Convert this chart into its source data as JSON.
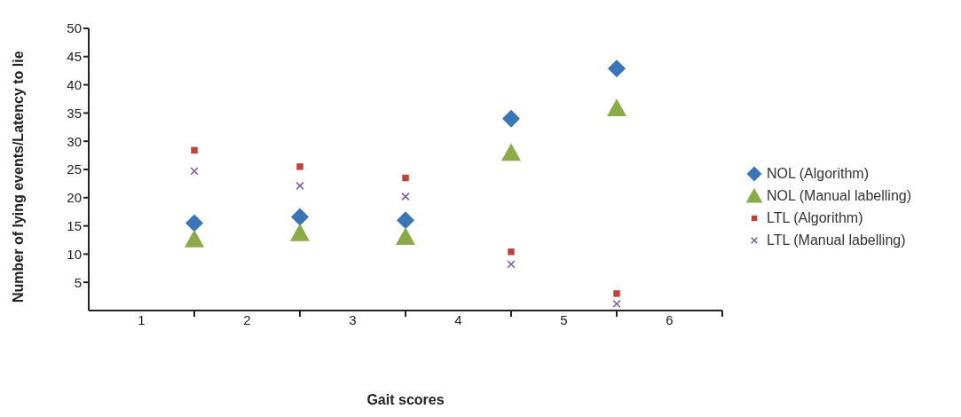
{
  "chart_data": {
    "type": "scatter",
    "xlabel": "Gait scores",
    "ylabel": "Number of lying events/Latency to lie",
    "x": [
      1.5,
      2.5,
      3.5,
      4.5,
      5.5
    ],
    "series": [
      {
        "name": "NOL (Algorithm)",
        "color": "#3a75b8",
        "marker": "diamond",
        "values": [
          15.5,
          16.6,
          16.0,
          34.0,
          42.9
        ]
      },
      {
        "name": "NOL (Manual labelling)",
        "color": "#8aab48",
        "marker": "triangle",
        "values": [
          12.6,
          13.7,
          13.0,
          27.9,
          35.8
        ]
      },
      {
        "name": "LTL (Algorithm)",
        "color": "#c0413c",
        "marker": "square",
        "values": [
          28.4,
          25.5,
          23.5,
          10.4,
          3.0
        ]
      },
      {
        "name": "LTL (Manual labelling)",
        "color": "#7d5ba6",
        "marker": "cross",
        "values": [
          24.7,
          22.1,
          20.2,
          8.2,
          1.2
        ]
      }
    ],
    "xlim": [
      0.5,
      6.5
    ],
    "xticks": [
      1,
      2,
      3,
      4,
      5,
      6,
      {
        "value": 1.5,
        "label": null
      },
      {
        "value": 2.5,
        "label": null
      },
      {
        "value": 3.5,
        "label": null
      },
      {
        "value": 4.5,
        "label": null
      },
      {
        "value": 5.5,
        "label": null
      },
      {
        "value": 6.5,
        "label": null
      }
    ],
    "ylim": [
      0,
      50
    ],
    "yticks": [
      5,
      10,
      15,
      20,
      25,
      30,
      35,
      40,
      45,
      50
    ],
    "grid": false,
    "legend": "right"
  }
}
